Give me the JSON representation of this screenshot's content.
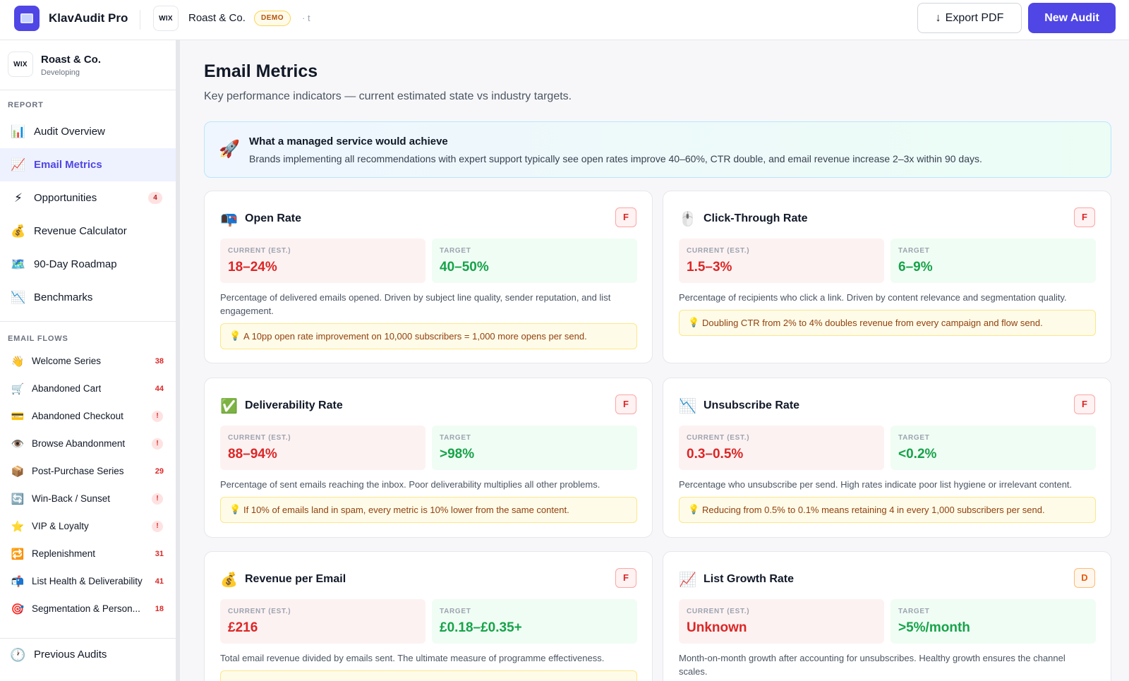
{
  "topbar": {
    "app_name": "KlavAudit Pro",
    "platform_badge": "WIX",
    "client_name": "Roast & Co.",
    "demo_label": "DEMO",
    "meta": "· t",
    "export_label": "Export PDF",
    "new_audit_label": "New Audit"
  },
  "sidebar": {
    "client_badge": "WIX",
    "client_name": "Roast & Co.",
    "client_status": "Developing",
    "report_label": "REPORT",
    "report_items": [
      {
        "icon": "📊",
        "icon_name": "bar-chart-icon",
        "label": "Audit Overview"
      },
      {
        "icon": "📈",
        "icon_name": "trend-up-icon",
        "label": "Email Metrics"
      },
      {
        "icon": "⚡",
        "icon_name": "lightning-icon",
        "label": "Opportunities",
        "count": "4"
      },
      {
        "icon": "💰",
        "icon_name": "money-bag-icon",
        "label": "Revenue Calculator"
      },
      {
        "icon": "🗺️",
        "icon_name": "map-icon",
        "label": "90-Day Roadmap"
      },
      {
        "icon": "📉",
        "icon_name": "trend-down-icon",
        "label": "Benchmarks"
      }
    ],
    "flows_label": "EMAIL FLOWS",
    "flow_items": [
      {
        "icon": "👋",
        "label": "Welcome Series",
        "count": "38"
      },
      {
        "icon": "🛒",
        "label": "Abandoned Cart",
        "count": "44"
      },
      {
        "icon": "💳",
        "label": "Abandoned Checkout",
        "count": "!"
      },
      {
        "icon": "👁️",
        "label": "Browse Abandonment",
        "count": "!"
      },
      {
        "icon": "📦",
        "label": "Post-Purchase Series",
        "count": "29"
      },
      {
        "icon": "🔄",
        "label": "Win-Back / Sunset",
        "count": "!"
      },
      {
        "icon": "⭐",
        "label": "VIP & Loyalty",
        "count": "!"
      },
      {
        "icon": "🔁",
        "label": "Replenishment",
        "count": "31"
      },
      {
        "icon": "📬",
        "label": "List Health & Deliverability",
        "count": "41"
      },
      {
        "icon": "🎯",
        "label": "Segmentation & Person...",
        "count": "18"
      }
    ],
    "previous_audits": {
      "icon": "🕐",
      "label": "Previous Audits"
    }
  },
  "main": {
    "title": "Email Metrics",
    "subtitle": "Key performance indicators — current estimated state vs industry targets.",
    "banner": {
      "icon": "🚀",
      "title": "What a managed service would achieve",
      "text": "Brands implementing all recommendations with expert support typically see open rates improve 40–60%, CTR double, and email revenue increase 2–3x within 90 days."
    },
    "current_label": "CURRENT (EST.)",
    "target_label": "TARGET",
    "cards": [
      {
        "icon": "📭",
        "title": "Open Rate",
        "grade": "F",
        "current": "18–24%",
        "target": "40–50%",
        "desc": "Percentage of delivered emails opened. Driven by subject line quality, sender reputation, and list engagement.",
        "tip": "A 10pp open rate improvement on 10,000 subscribers = 1,000 more opens per send."
      },
      {
        "icon": "🖱️",
        "title": "Click-Through Rate",
        "grade": "F",
        "current": "1.5–3%",
        "target": "6–9%",
        "desc": "Percentage of recipients who click a link. Driven by content relevance and segmentation quality.",
        "tip": "Doubling CTR from 2% to 4% doubles revenue from every campaign and flow send."
      },
      {
        "icon": "✅",
        "title": "Deliverability Rate",
        "grade": "F",
        "current": "88–94%",
        "target": ">98%",
        "desc": "Percentage of sent emails reaching the inbox. Poor deliverability multiplies all other problems.",
        "tip": "If 10% of emails land in spam, every metric is 10% lower from the same content."
      },
      {
        "icon": "📉",
        "title": "Unsubscribe Rate",
        "grade": "F",
        "current": "0.3–0.5%",
        "target": "<0.2%",
        "desc": "Percentage who unsubscribe per send. High rates indicate poor list hygiene or irrelevant content.",
        "tip": "Reducing from 0.5% to 0.1% means retaining 4 in every 1,000 subscribers per send."
      },
      {
        "icon": "💰",
        "title": "Revenue per Email",
        "grade": "F",
        "current": "£216",
        "target": "£0.18–£0.35+",
        "desc": "Total email revenue divided by emails sent. The ultimate measure of programme effectiveness."
      },
      {
        "icon": "📈",
        "title": "List Growth Rate",
        "grade": "D",
        "current": "Unknown",
        "target": ">5%/month",
        "desc": "Month-on-month growth after accounting for unsubscribes. Healthy growth ensures the channel scales."
      }
    ],
    "tip_icon": "💡"
  }
}
